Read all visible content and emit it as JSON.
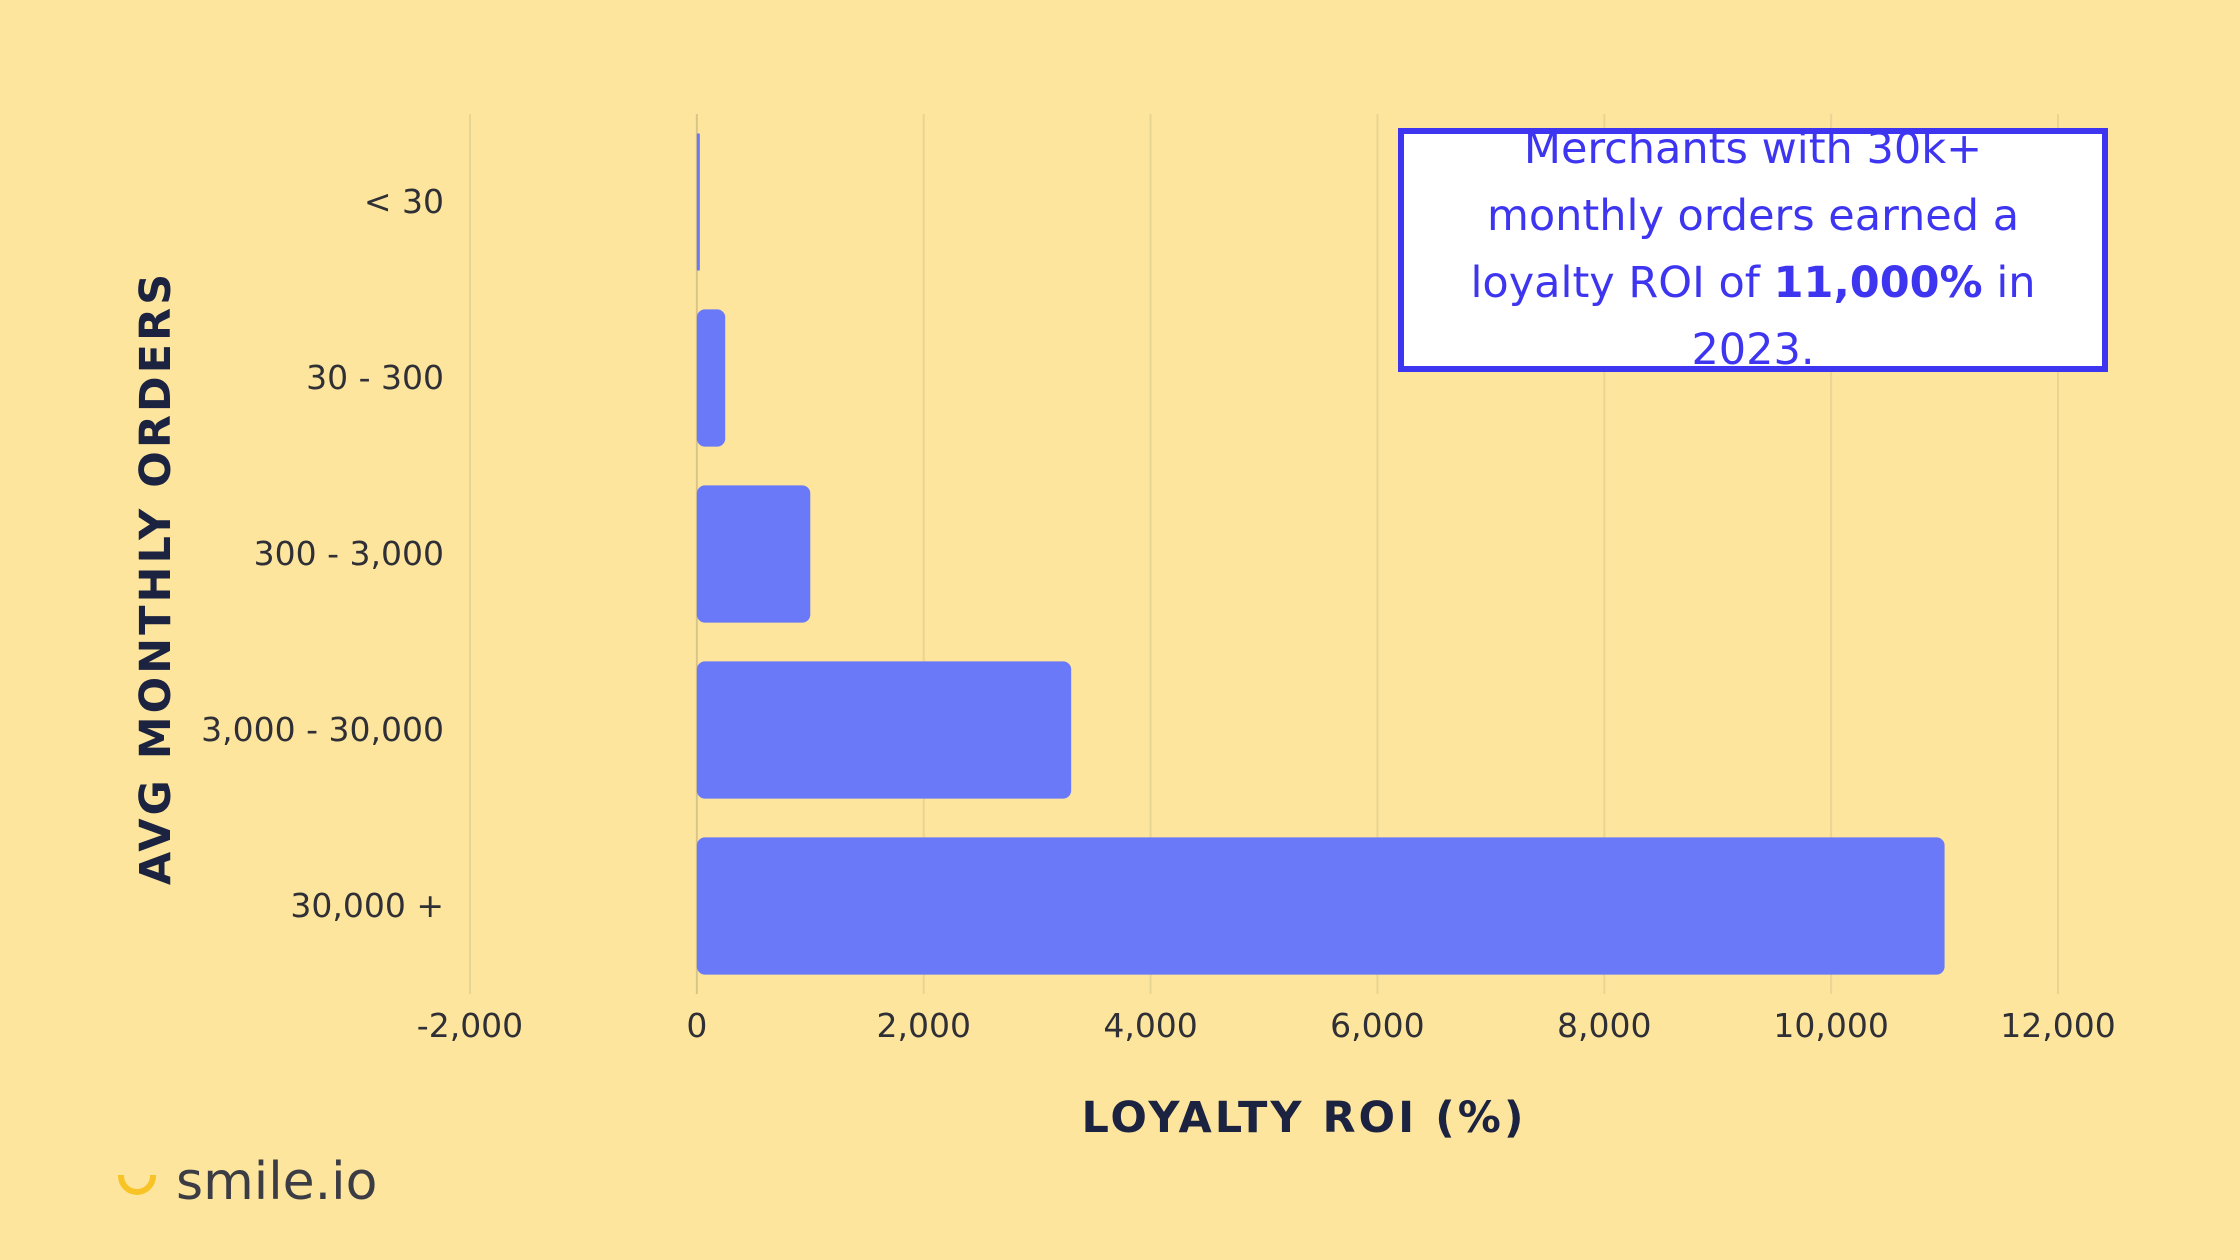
{
  "colors": {
    "background": "#FEE59E",
    "bar": "#6979F8",
    "accent": "#3D35F0",
    "grid": "#E9D592",
    "brand_mark": "#F7C325"
  },
  "callout": {
    "line1": "Merchants with 30k+",
    "line2": "monthly orders earned a",
    "line3_pre": "loyalty ROI of ",
    "line3_bold": "11,000%",
    "line3_post": " in 2023."
  },
  "brand": {
    "icon": "smile-icon",
    "name": "smile.io"
  },
  "chart_data": {
    "type": "bar",
    "orientation": "horizontal",
    "title": "",
    "xlabel": "LOYALTY ROI (%)",
    "ylabel": "AVG MONTHLY ORDERS",
    "categories": [
      "< 30",
      "30 - 300",
      "300 - 3,000",
      "3,000 - 30,000",
      "30,000 +"
    ],
    "values": [
      5,
      250,
      1000,
      3300,
      11000
    ],
    "xlim": [
      -2000,
      12000
    ],
    "xticks": [
      -2000,
      0,
      2000,
      4000,
      6000,
      8000,
      10000,
      12000
    ],
    "xtick_labels": [
      "-2,000",
      "0",
      "2,000",
      "4,000",
      "6,000",
      "8,000",
      "10,000",
      "12,000"
    ],
    "grid": "vertical"
  }
}
